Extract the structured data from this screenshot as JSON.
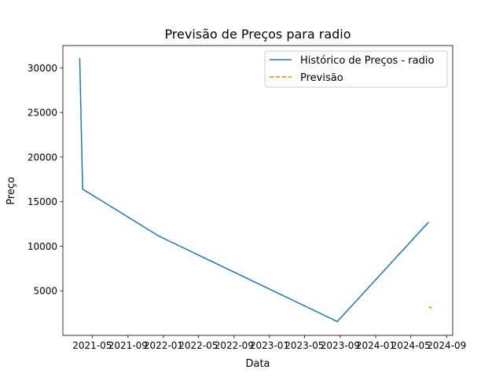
{
  "chart_data": {
    "type": "line",
    "title": "Previsão de Preços para radio",
    "xlabel": "Data",
    "ylabel": "Preço",
    "x_axis_type": "date",
    "xlim": [
      "2021-01-20",
      "2024-09-22"
    ],
    "ylim": [
      0,
      32500
    ],
    "x_ticks": [
      "2021-05",
      "2021-09",
      "2022-01",
      "2022-05",
      "2022-09",
      "2023-01",
      "2023-05",
      "2023-09",
      "2024-01",
      "2024-05",
      "2024-09"
    ],
    "x_tick_dates": [
      "2021-05-01",
      "2021-09-01",
      "2022-01-01",
      "2022-05-01",
      "2022-09-01",
      "2023-01-01",
      "2023-05-01",
      "2023-09-01",
      "2024-01-01",
      "2024-05-01",
      "2024-09-01"
    ],
    "y_ticks": [
      5000,
      10000,
      15000,
      20000,
      25000,
      30000
    ],
    "grid": false,
    "legend_position": "top-right",
    "series": [
      {
        "name": "Histórico de Preços - radio",
        "color": "#1f77b4",
        "style": "solid",
        "points": [
          {
            "x": "2021-03-19",
            "y": 31100
          },
          {
            "x": "2021-03-29",
            "y": 16400
          },
          {
            "x": "2021-12-18",
            "y": 11100
          },
          {
            "x": "2023-08-22",
            "y": 1550
          },
          {
            "x": "2024-07-01",
            "y": 12700
          }
        ]
      },
      {
        "name": "Previsão",
        "color": "#ff7f0e",
        "style": "dashed",
        "points": [
          {
            "x": "2024-07-02",
            "y": 3220
          },
          {
            "x": "2024-07-12",
            "y": 3050
          }
        ]
      }
    ]
  }
}
